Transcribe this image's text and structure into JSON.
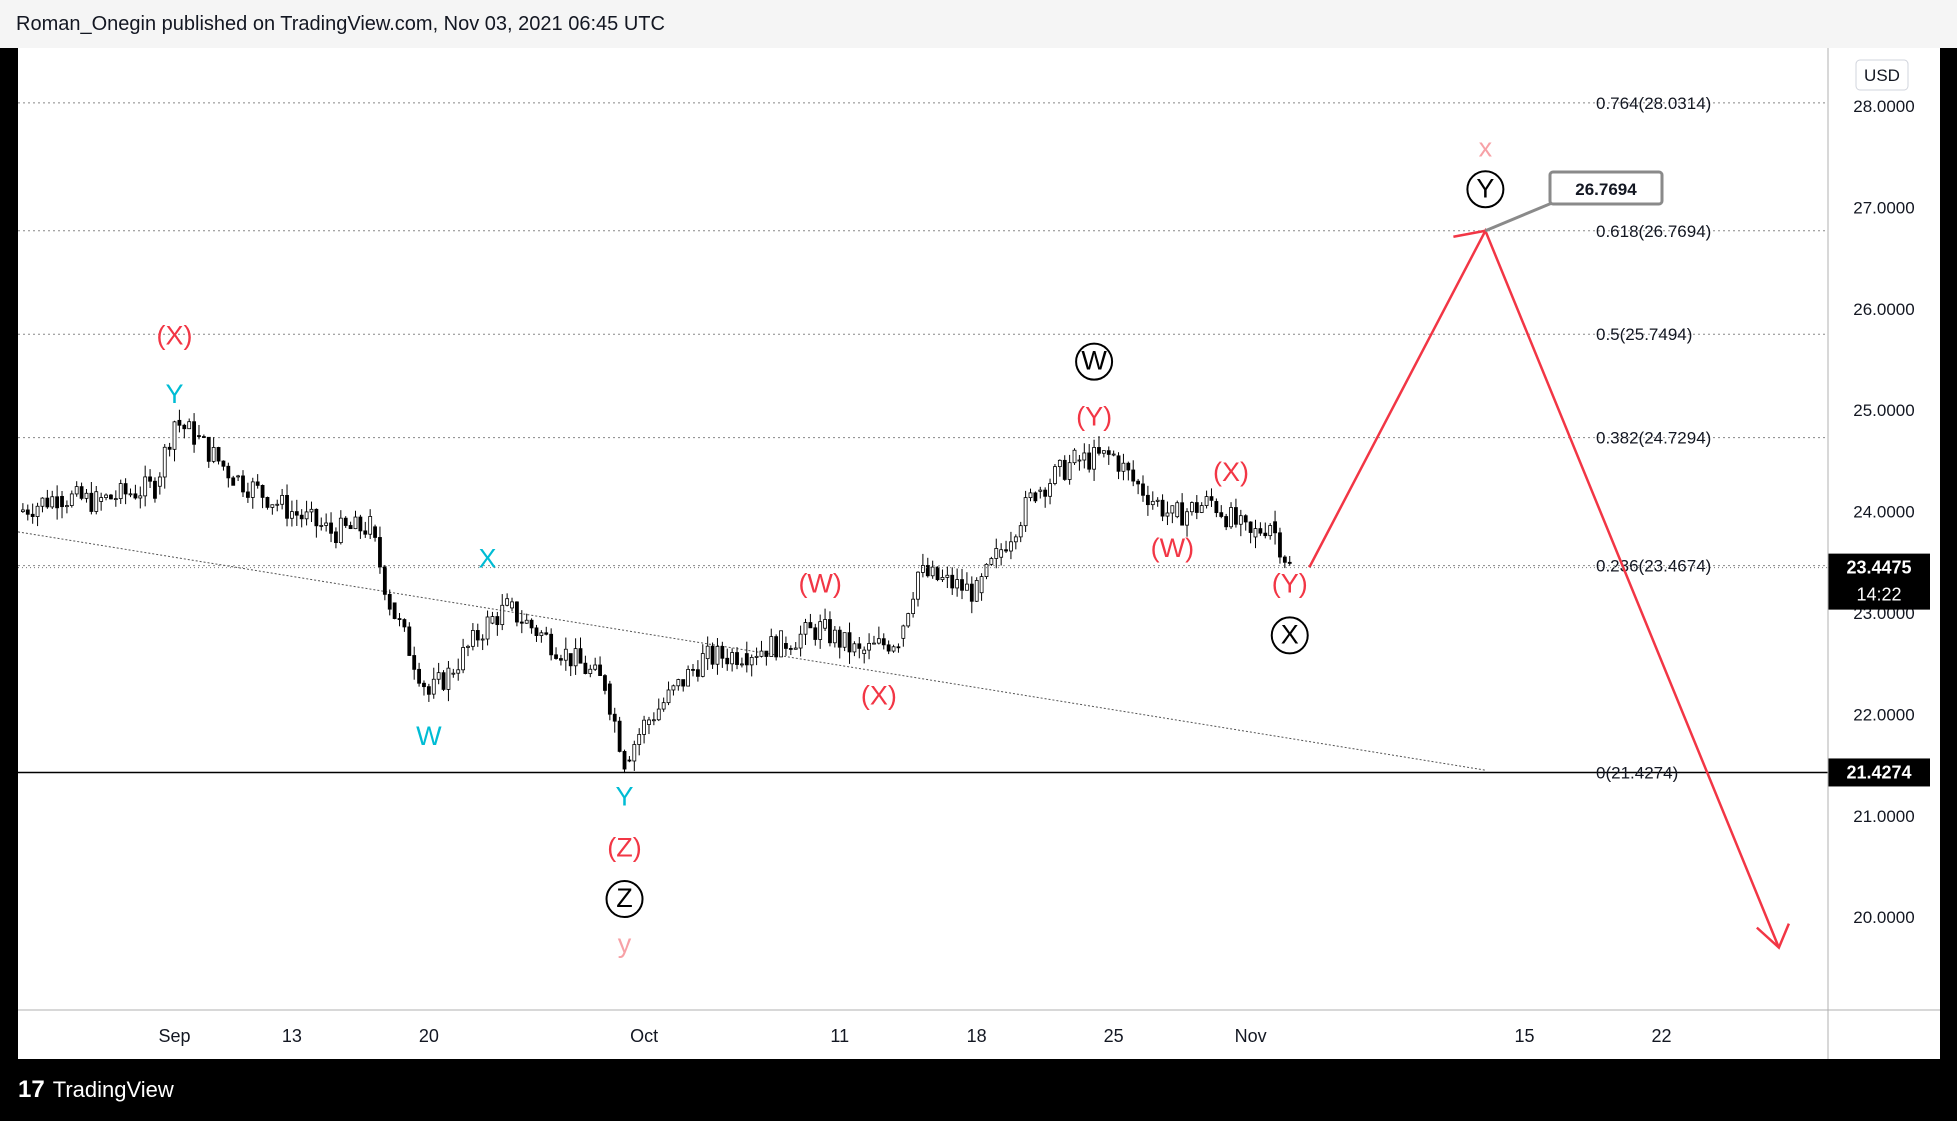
{
  "header": {
    "attribution": "Roman_Onegin published on TradingView.com, Nov 03, 2021 06:45 UTC"
  },
  "footer": {
    "logo_mark": "17",
    "brand": "TradingView"
  },
  "currency_button": "USD",
  "chart_data": {
    "type": "candlestick",
    "ylim": [
      19.0,
      28.5
    ],
    "grid": false,
    "y_tick_labels": [
      "28.0000",
      "27.0000",
      "26.0000",
      "25.0000",
      "24.0000",
      "23.0000",
      "22.0000",
      "21.0000",
      "20.0000"
    ],
    "y_ticks": [
      28,
      27,
      26,
      25,
      24,
      23,
      22,
      21,
      20
    ],
    "x_tick_labels": [
      "Sep",
      "13",
      "20",
      "Oct",
      "11",
      "18",
      "25",
      "Nov",
      "15",
      "22"
    ],
    "x_ticks": [
      "2021-09-07",
      "2021-09-13",
      "2021-09-20",
      "2021-10-01",
      "2021-10-11",
      "2021-10-18",
      "2021-10-25",
      "2021-11-01",
      "2021-11-15",
      "2021-11-22"
    ],
    "last_price": {
      "value": "23.4475",
      "countdown": "14:22"
    },
    "low_marker": "21.4274",
    "fibonacci_levels": [
      {
        "label": "0.764(28.0314)",
        "value": 28.0314
      },
      {
        "label": "0.618(26.7694)",
        "value": 26.7694
      },
      {
        "label": "0.5(25.7494)",
        "value": 25.7494
      },
      {
        "label": "0.382(24.7294)",
        "value": 24.7294
      },
      {
        "label": "0.236(23.4674)",
        "value": 23.4674
      },
      {
        "label": "0(21.4274)",
        "value": 21.4274
      }
    ],
    "target_callout": "26.7694",
    "price_path": [
      [
        "2021-08-30",
        24.0
      ],
      [
        "2021-09-01",
        24.15
      ],
      [
        "2021-09-03",
        24.1
      ],
      [
        "2021-09-06",
        24.25
      ],
      [
        "2021-09-07",
        24.9
      ],
      [
        "2021-09-08",
        24.75
      ],
      [
        "2021-09-10",
        24.35
      ],
      [
        "2021-09-13",
        24.0
      ],
      [
        "2021-09-15",
        23.8
      ],
      [
        "2021-09-17",
        23.85
      ],
      [
        "2021-09-18",
        23.1
      ],
      [
        "2021-09-20",
        22.2
      ],
      [
        "2021-09-21",
        22.4
      ],
      [
        "2021-09-23",
        22.9
      ],
      [
        "2021-09-24",
        23.05
      ],
      [
        "2021-09-27",
        22.6
      ],
      [
        "2021-09-29",
        22.3
      ],
      [
        "2021-09-30",
        21.55
      ],
      [
        "2021-10-01",
        21.9
      ],
      [
        "2021-10-04",
        22.55
      ],
      [
        "2021-10-06",
        22.6
      ],
      [
        "2021-10-08",
        22.7
      ],
      [
        "2021-10-10",
        22.85
      ],
      [
        "2021-10-12",
        22.6
      ],
      [
        "2021-10-14",
        22.75
      ],
      [
        "2021-10-15",
        23.4
      ],
      [
        "2021-10-18",
        23.2
      ],
      [
        "2021-10-19",
        23.55
      ],
      [
        "2021-10-21",
        24.2
      ],
      [
        "2021-10-23",
        24.5
      ],
      [
        "2021-10-25",
        24.55
      ],
      [
        "2021-10-26",
        24.3
      ],
      [
        "2021-10-28",
        23.95
      ],
      [
        "2021-10-30",
        24.1
      ],
      [
        "2021-11-01",
        23.75
      ],
      [
        "2021-11-02",
        23.9
      ],
      [
        "2021-11-03",
        23.45
      ]
    ],
    "projection": [
      [
        "2021-11-04",
        23.45
      ],
      [
        "2021-11-13",
        26.7694
      ],
      [
        "2021-11-28",
        19.7
      ]
    ],
    "trendline": [
      [
        "2021-08-30",
        23.8
      ],
      [
        "2021-11-13",
        21.45
      ]
    ],
    "wave_labels": [
      {
        "text": "(X)",
        "color": "#f23645",
        "date": "2021-09-07",
        "value": 25.65
      },
      {
        "text": "Y",
        "color": "#00bcd4",
        "date": "2021-09-07",
        "value": 25.07
      },
      {
        "text": "X",
        "color": "#00bcd4",
        "date": "2021-09-23",
        "value": 23.45
      },
      {
        "text": "W",
        "color": "#00bcd4",
        "date": "2021-09-20",
        "value": 21.7
      },
      {
        "text": "Y",
        "color": "#00bcd4",
        "date": "2021-09-30",
        "value": 21.1
      },
      {
        "text": "(Z)",
        "color": "#f23645",
        "date": "2021-09-30",
        "value": 20.6
      },
      {
        "text": "Z",
        "color": "#000000",
        "date": "2021-09-30",
        "value": 20.1,
        "circled": true
      },
      {
        "text": "y",
        "color": "#f7a1a6",
        "date": "2021-09-30",
        "value": 19.65
      },
      {
        "text": "(W)",
        "color": "#f23645",
        "date": "2021-10-10",
        "value": 23.2
      },
      {
        "text": "(X)",
        "color": "#f23645",
        "date": "2021-10-13",
        "value": 22.1
      },
      {
        "text": "W",
        "color": "#000000",
        "date": "2021-10-24",
        "value": 25.4,
        "circled": true
      },
      {
        "text": "(Y)",
        "color": "#f23645",
        "date": "2021-10-24",
        "value": 24.85
      },
      {
        "text": "(X)",
        "color": "#f23645",
        "date": "2021-10-31",
        "value": 24.3
      },
      {
        "text": "(W)",
        "color": "#f23645",
        "date": "2021-10-28",
        "value": 23.55
      },
      {
        "text": "(Y)",
        "color": "#f23645",
        "date": "2021-11-03",
        "value": 23.2
      },
      {
        "text": "X",
        "color": "#000000",
        "date": "2021-11-03",
        "value": 22.7,
        "circled": true
      },
      {
        "text": "Y",
        "color": "#000000",
        "date": "2021-11-13",
        "value": 27.1,
        "circled": true
      },
      {
        "text": "x",
        "color": "#f7a1a6",
        "date": "2021-11-13",
        "value": 27.5
      }
    ]
  }
}
